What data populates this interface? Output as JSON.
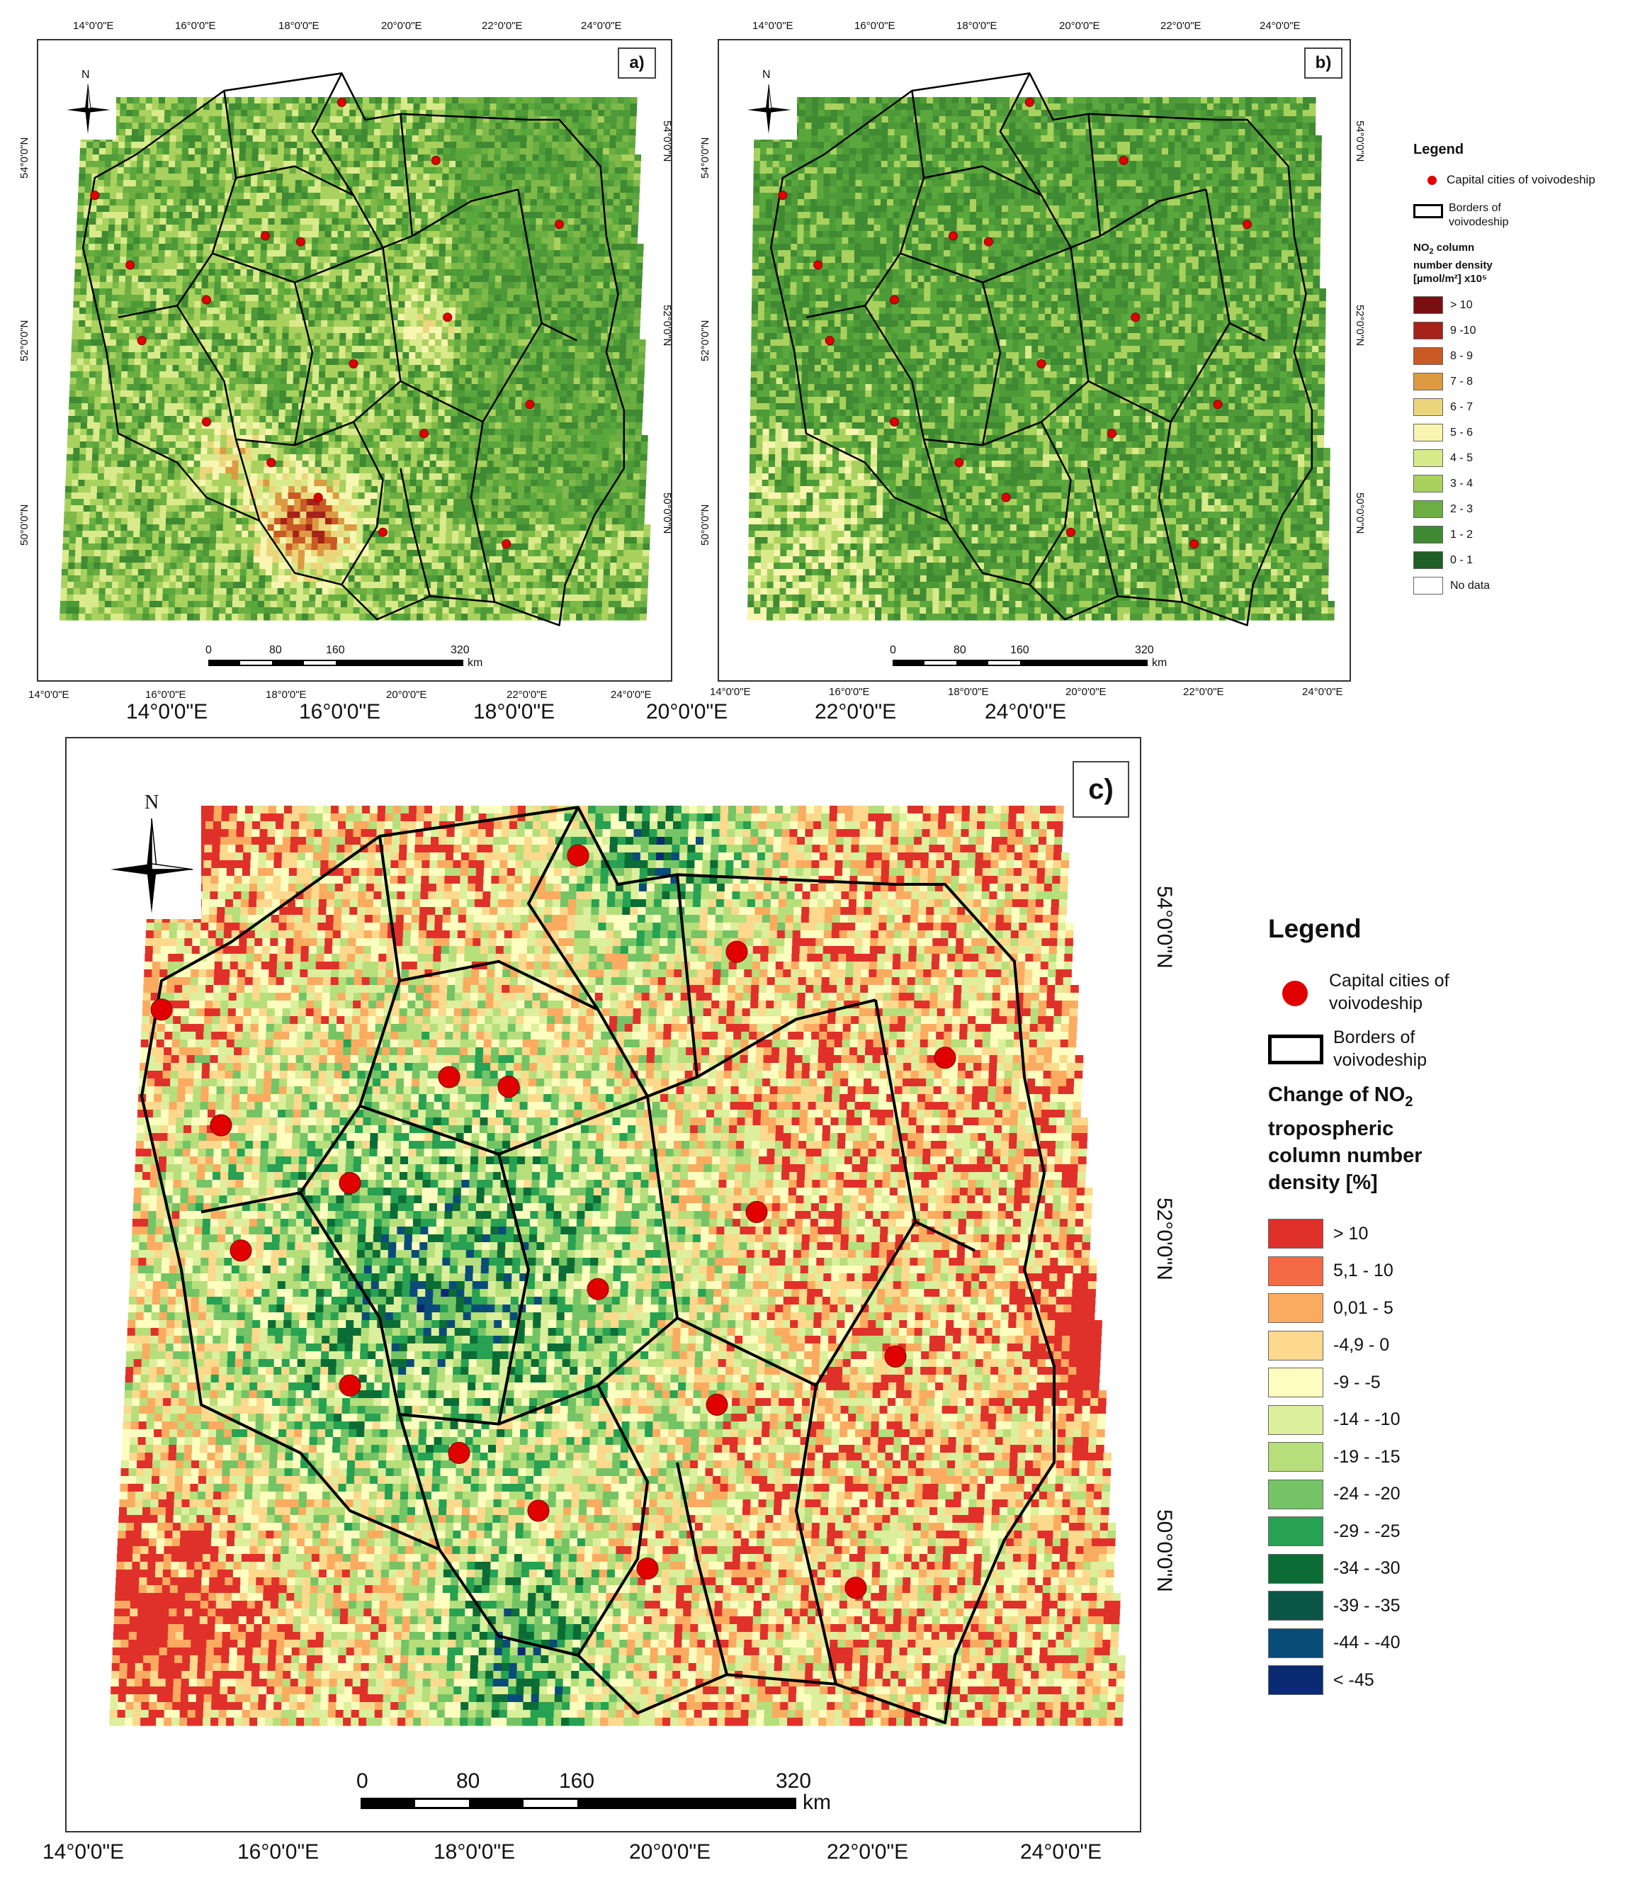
{
  "panels": {
    "a": {
      "label": "a)"
    },
    "b": {
      "label": "b)"
    },
    "c": {
      "label": "c)"
    }
  },
  "north_label": "N",
  "coords": {
    "lon": [
      "14°0'0\"E",
      "16°0'0\"E",
      "18°0'0\"E",
      "20°0'0\"E",
      "22°0'0\"E",
      "24°0'0\"E"
    ],
    "lat": [
      "54°0'0\"N",
      "52°0'0\"N",
      "50°0'0\"N"
    ]
  },
  "scale": {
    "ticks": [
      "0",
      "80",
      "160",
      "320"
    ],
    "unit": "km"
  },
  "legend_small": {
    "title": "Legend",
    "cities": "Capital cities of voivodeship",
    "borders": "Borders of voivodeship",
    "heading_line1": "NO",
    "heading_sub": "2",
    "heading_line1b": " column",
    "heading_line2": "number density",
    "heading_line3": "[µmol/m²] x10⁵",
    "classes": [
      {
        "label": "> 10",
        "color": "#7a0f12"
      },
      {
        "label": "9 -10",
        "color": "#a5221a"
      },
      {
        "label": "8 - 9",
        "color": "#c95a24"
      },
      {
        "label": "7 - 8",
        "color": "#dc9a43"
      },
      {
        "label": "6 - 7",
        "color": "#ecd67c"
      },
      {
        "label": "5 - 6",
        "color": "#f8f5b0"
      },
      {
        "label": "4 - 5",
        "color": "#d9ea8a"
      },
      {
        "label": "3 - 4",
        "color": "#a9d15e"
      },
      {
        "label": "2 - 3",
        "color": "#6cae41"
      },
      {
        "label": "1 - 2",
        "color": "#3f8a32"
      },
      {
        "label": "0 - 1",
        "color": "#1f5e24"
      },
      {
        "label": "No data",
        "color": "#ffffff"
      }
    ]
  },
  "legend_big": {
    "title": "Legend",
    "cities_line1": "Capital cities of",
    "cities_line2": "voivodeship",
    "borders_line1": "Borders of",
    "borders_line2": "voivodeship",
    "heading_line1": "Change of NO",
    "heading_sub": "2",
    "heading_line2": "tropospheric",
    "heading_line3": "column number",
    "heading_line4": "density [%]",
    "classes": [
      {
        "label": "> 10",
        "color": "#e0302a"
      },
      {
        "label": "5,1 - 10",
        "color": "#f36a45"
      },
      {
        "label": "0,01 - 5",
        "color": "#fbab60"
      },
      {
        "label": "-4,9 - 0",
        "color": "#fcd98c"
      },
      {
        "label": "-9 - -5",
        "color": "#fdfdc0"
      },
      {
        "label": "-14 - -10",
        "color": "#dcef9c"
      },
      {
        "label": "-19 - -15",
        "color": "#b6de7b"
      },
      {
        "label": "-24 - -20",
        "color": "#74c466"
      },
      {
        "label": "-29 - -25",
        "color": "#27a152"
      },
      {
        "label": "-34 - -30",
        "color": "#0b6d35"
      },
      {
        "label": "-39 - -35",
        "color": "#0c5648"
      },
      {
        "label": "-44 - -40",
        "color": "#0a4c78"
      },
      {
        "label": "< -45",
        "color": "#0b2a74"
      }
    ]
  },
  "palette": {
    "ab_low": [
      "#3f8a32",
      "#4e9a38",
      "#5aa83d",
      "#6cae41",
      "#7fb94a"
    ],
    "ab_high": [
      "#a9d15e",
      "#d9ea8a",
      "#f8f5b0",
      "#ecd67c",
      "#dc9a43",
      "#c95a24",
      "#a5221a"
    ],
    "c_mix": [
      "#0b2a74",
      "#0a4c78",
      "#0b6d35",
      "#27a152",
      "#74c466",
      "#b6de7b",
      "#dcef9c",
      "#fdfdc0",
      "#fcd98c",
      "#fbab60",
      "#e0302a"
    ]
  }
}
